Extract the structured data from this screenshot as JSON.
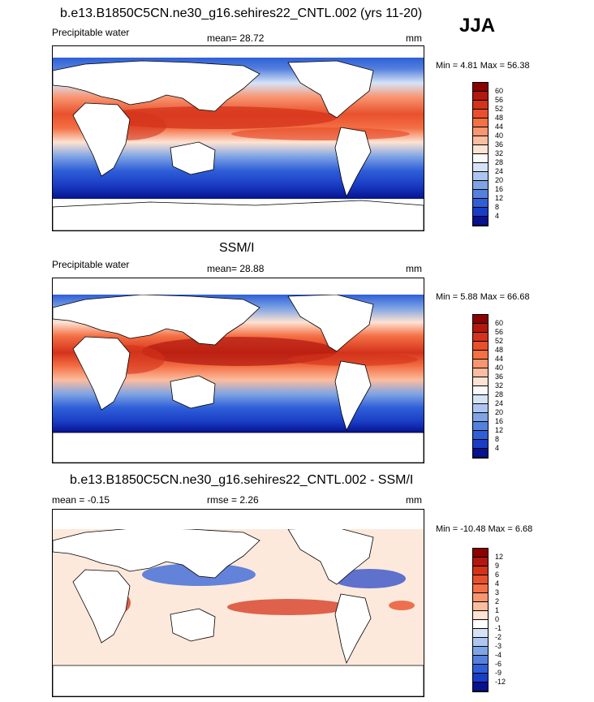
{
  "season": "JJA",
  "panels": [
    {
      "title": "b.e13.B1850C5CN.ne30_g16.sehires22_CNTL.002 (yrs 11-20)",
      "variable": "Precipitable water",
      "mean": "mean=  28.72",
      "units": "mm",
      "minmax": "Min =   4.81 Max =  56.38",
      "colorbar": {
        "labels": [
          "60",
          "56",
          "52",
          "48",
          "44",
          "40",
          "36",
          "32",
          "28",
          "24",
          "20",
          "16",
          "12",
          "8",
          "4"
        ],
        "colors": [
          "#8b0000",
          "#b2180e",
          "#d4331b",
          "#e8502c",
          "#f47045",
          "#f99571",
          "#fbbda0",
          "#fde3d3",
          "#fafafa",
          "#d6e3f6",
          "#aec6ef",
          "#7fa4e4",
          "#5581dd",
          "#2f5fd8",
          "#1a3dc5",
          "#06128f"
        ]
      },
      "map_legend": [
        "water vapour: low (blue) in southern high latitudes, high (red) over the warm pool and ITCZ"
      ]
    },
    {
      "title": "SSM/I",
      "variable": "Precipitable water",
      "mean": "mean=  28.88",
      "units": "mm",
      "minmax": "Min =   5.88 Max =  66.68",
      "colorbar": {
        "labels": [
          "60",
          "56",
          "52",
          "48",
          "44",
          "40",
          "36",
          "32",
          "28",
          "24",
          "20",
          "16",
          "12",
          "8",
          "4"
        ],
        "colors": [
          "#8b0000",
          "#b2180e",
          "#d4331b",
          "#e8502c",
          "#f47045",
          "#f99571",
          "#fbbda0",
          "#fde3d3",
          "#fafafa",
          "#d6e3f6",
          "#aec6ef",
          "#7fa4e4",
          "#5581dd",
          "#2f5fd8",
          "#1a3dc5",
          "#06128f"
        ]
      }
    },
    {
      "title": "b.e13.B1850C5CN.ne30_g16.sehires22_CNTL.002 - SSM/I",
      "variable": "",
      "mean": "mean =  -0.15",
      "rmse": "rmse =   2.26",
      "units": "mm",
      "minmax": "Min = -10.48 Max =   6.68",
      "colorbar": {
        "labels": [
          "12",
          "9",
          "6",
          "4",
          "3",
          "2",
          "1",
          "0",
          "-1",
          "-2",
          "-3",
          "-4",
          "-6",
          "-9",
          "-12"
        ],
        "colors": [
          "#8b0000",
          "#b2180e",
          "#d4331b",
          "#e8502c",
          "#f47045",
          "#f99571",
          "#fbbda0",
          "#fde3d3",
          "#ffffff",
          "#d6e3f6",
          "#aec6ef",
          "#7fa4e4",
          "#5581dd",
          "#2f5fd8",
          "#1a3dc5",
          "#06128f"
        ]
      }
    }
  ],
  "chart_data": [
    {
      "type": "heatmap",
      "title": "b.e13.B1850C5CN.ne30_g16.sehires22_CNTL.002 (yrs 11-20)",
      "field": "Precipitable water",
      "units": "mm",
      "season": "JJA",
      "mean": 28.72,
      "min": 4.81,
      "max": 56.38,
      "contour_levels": [
        4,
        8,
        12,
        16,
        20,
        24,
        28,
        32,
        36,
        40,
        44,
        48,
        52,
        56,
        60
      ]
    },
    {
      "type": "heatmap",
      "title": "SSM/I",
      "field": "Precipitable water",
      "units": "mm",
      "season": "JJA",
      "mean": 28.88,
      "min": 5.88,
      "max": 66.68,
      "contour_levels": [
        4,
        8,
        12,
        16,
        20,
        24,
        28,
        32,
        36,
        40,
        44,
        48,
        52,
        56,
        60
      ]
    },
    {
      "type": "heatmap",
      "title": "b.e13.B1850C5CN.ne30_g16.sehires22_CNTL.002 - SSM/I",
      "field": "Precipitable water difference",
      "units": "mm",
      "season": "JJA",
      "mean": -0.15,
      "rmse": 2.26,
      "min": -10.48,
      "max": 6.68,
      "contour_levels": [
        -12,
        -9,
        -6,
        -4,
        -3,
        -2,
        -1,
        0,
        1,
        2,
        3,
        4,
        6,
        9,
        12
      ]
    }
  ]
}
